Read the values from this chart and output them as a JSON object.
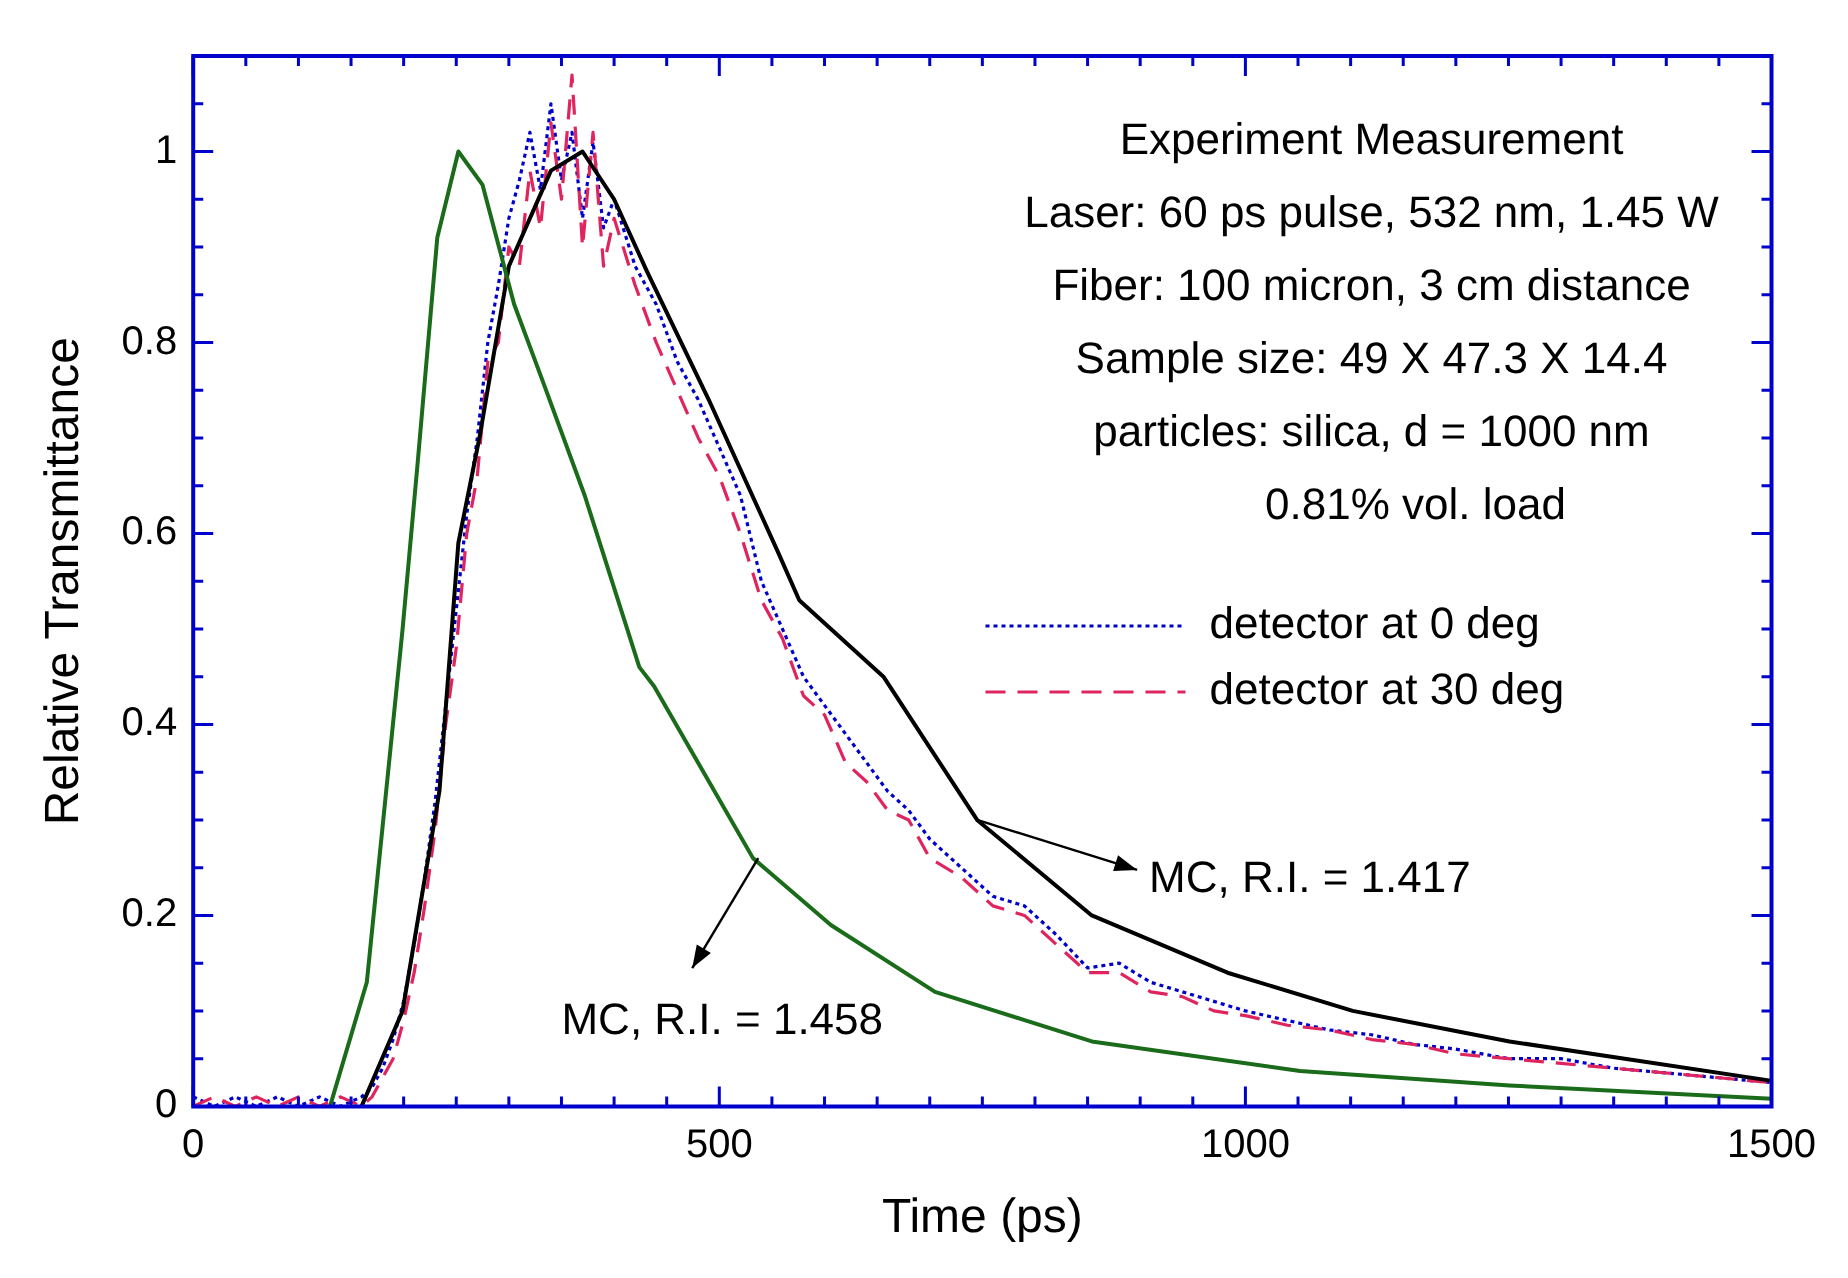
{
  "chart_data": {
    "type": "line",
    "xlabel": "Time (ps)",
    "ylabel": "Relative Transmittance",
    "xlim": [
      0,
      1500
    ],
    "xticks": [
      0,
      500,
      1000,
      1500
    ],
    "ylim": [
      0,
      1.1
    ],
    "yticks": [
      0,
      0.2,
      0.4,
      0.6,
      0.8,
      1
    ],
    "grid": false,
    "legend": "right",
    "marker": "none",
    "series": [
      {
        "name": "detector at 0 deg",
        "color": "#0000cc",
        "line_style": "dotted",
        "x": [
          0,
          20,
          40,
          60,
          80,
          100,
          120,
          140,
          160,
          170,
          180,
          190,
          200,
          210,
          220,
          230,
          240,
          250,
          260,
          270,
          280,
          290,
          300,
          310,
          320,
          330,
          340,
          350,
          360,
          370,
          380,
          390,
          400,
          420,
          440,
          460,
          480,
          500,
          520,
          540,
          560,
          580,
          600,
          620,
          640,
          660,
          680,
          700,
          730,
          760,
          790,
          820,
          850,
          880,
          910,
          940,
          970,
          1000,
          1040,
          1080,
          1120,
          1160,
          1200,
          1250,
          1300,
          1350,
          1400,
          1450,
          1500
        ],
        "values": [
          0.01,
          0,
          0.01,
          0,
          0.01,
          0,
          0.01,
          0,
          0.01,
          0.02,
          0.04,
          0.07,
          0.11,
          0.17,
          0.24,
          0.32,
          0.42,
          0.52,
          0.62,
          0.7,
          0.8,
          0.86,
          0.93,
          0.97,
          1.02,
          0.96,
          1.05,
          0.97,
          1.02,
          0.93,
          1.01,
          0.92,
          0.95,
          0.88,
          0.84,
          0.78,
          0.74,
          0.69,
          0.64,
          0.55,
          0.5,
          0.45,
          0.42,
          0.39,
          0.36,
          0.33,
          0.31,
          0.28,
          0.25,
          0.22,
          0.21,
          0.18,
          0.145,
          0.15,
          0.13,
          0.12,
          0.11,
          0.1,
          0.09,
          0.08,
          0.075,
          0.065,
          0.06,
          0.05,
          0.05,
          0.04,
          0.035,
          0.03,
          0.025
        ]
      },
      {
        "name": "detector at 30 deg",
        "color": "#e0245e",
        "line_style": "dashed",
        "x": [
          0,
          20,
          40,
          60,
          80,
          100,
          120,
          140,
          160,
          170,
          180,
          190,
          200,
          210,
          220,
          230,
          240,
          250,
          260,
          270,
          280,
          290,
          300,
          310,
          320,
          330,
          340,
          350,
          360,
          370,
          380,
          390,
          400,
          420,
          440,
          460,
          480,
          500,
          520,
          540,
          560,
          580,
          600,
          620,
          640,
          660,
          680,
          700,
          730,
          760,
          790,
          820,
          850,
          880,
          910,
          940,
          970,
          1000,
          1040,
          1080,
          1120,
          1160,
          1200,
          1250,
          1300,
          1350,
          1400,
          1450,
          1500
        ],
        "values": [
          0,
          0.01,
          0,
          0.01,
          0,
          0.01,
          0,
          0.01,
          0,
          0.01,
          0.03,
          0.05,
          0.09,
          0.14,
          0.21,
          0.29,
          0.4,
          0.48,
          0.6,
          0.66,
          0.78,
          0.8,
          0.9,
          0.88,
          0.98,
          0.92,
          1.03,
          0.95,
          1.08,
          0.9,
          1.02,
          0.88,
          0.93,
          0.86,
          0.8,
          0.75,
          0.7,
          0.66,
          0.6,
          0.53,
          0.49,
          0.43,
          0.41,
          0.36,
          0.34,
          0.31,
          0.3,
          0.26,
          0.24,
          0.21,
          0.2,
          0.17,
          0.14,
          0.14,
          0.12,
          0.115,
          0.1,
          0.095,
          0.085,
          0.08,
          0.07,
          0.065,
          0.055,
          0.05,
          0.045,
          0.04,
          0.035,
          0.03,
          0.025
        ]
      },
      {
        "color": "#000000",
        "line_style": "solid",
        "x": [
          160,
          199,
          234,
          252,
          272,
          300,
          340,
          370,
          400,
          431,
          490,
          556,
          576,
          656,
          745,
          854,
          983,
          1102,
          1251,
          1499
        ],
        "values": [
          0,
          0.1,
          0.33,
          0.59,
          0.7,
          0.88,
          0.98,
          1,
          0.95,
          0.875,
          0.74,
          0.58,
          0.53,
          0.45,
          0.3,
          0.2,
          0.14,
          0.1,
          0.068,
          0.027
        ]
      },
      {
        "color": "#1a6b1a",
        "line_style": "solid",
        "x": [
          130,
          165,
          199,
          213,
          232,
          252,
          275,
          305,
          332,
          372,
          424,
          438,
          532,
          606,
          705,
          854,
          1052,
          1251,
          1500
        ],
        "values": [
          0,
          0.13,
          0.5,
          0.67,
          0.91,
          1,
          0.965,
          0.84,
          0.76,
          0.64,
          0.46,
          0.44,
          0.26,
          0.19,
          0.12,
          0.068,
          0.037,
          0.022,
          0.008
        ]
      }
    ],
    "annotations": [
      "Experiment Measurement",
      "Laser: 60 ps pulse, 532 nm, 1.45 W",
      "Fiber: 100 micron, 3 cm distance",
      "Sample size: 49 X 47.3 X 14.4",
      "particles: silica, d = 1000 nm",
      "0.81% vol. load",
      {
        "text": "MC, R.I. = 1.417",
        "x": 745,
        "y": 0.3
      },
      {
        "text": "MC, R.I. = 1.458",
        "x": 537,
        "y": 0.26
      }
    ]
  }
}
